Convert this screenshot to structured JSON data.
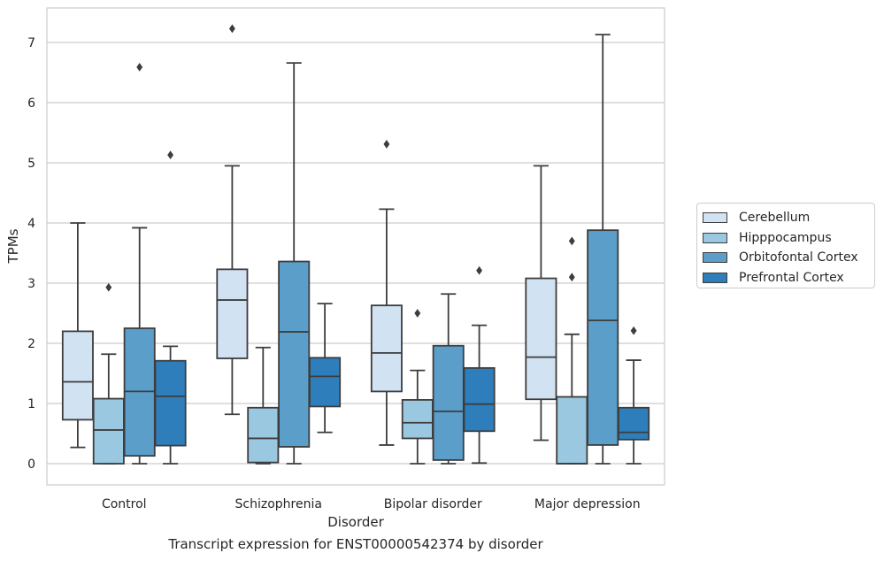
{
  "chart_data": {
    "type": "boxplot",
    "title": "Transcript expression for ENST00000542374 by disorder",
    "xlabel": "Disorder",
    "ylabel": "TPMs",
    "ylim": [
      -0.35,
      7.6
    ],
    "yticks": [
      0,
      1,
      2,
      3,
      4,
      5,
      6,
      7
    ],
    "grid": true,
    "legend_position": "right",
    "categories": [
      "Control",
      "Schizophrenia",
      "Bipolar disorder",
      "Major depression"
    ],
    "series": [
      {
        "name": "Cerebellum",
        "color": "#d1e2f2",
        "boxes": [
          {
            "whislo": 0.27,
            "q1": 0.73,
            "med": 1.36,
            "q3": 2.2,
            "whishi": 4.0,
            "fliers": []
          },
          {
            "whislo": 0.82,
            "q1": 1.75,
            "med": 2.72,
            "q3": 3.23,
            "whishi": 4.95,
            "fliers": [
              7.23
            ]
          },
          {
            "whislo": 0.31,
            "q1": 1.2,
            "med": 1.84,
            "q3": 2.63,
            "whishi": 4.23,
            "fliers": [
              5.31
            ]
          },
          {
            "whislo": 0.39,
            "q1": 1.07,
            "med": 1.77,
            "q3": 3.08,
            "whishi": 4.95,
            "fliers": []
          }
        ]
      },
      {
        "name": "Hipppocampus",
        "color": "#9ac8e0",
        "boxes": [
          {
            "whislo": 0.0,
            "q1": 0.0,
            "med": 0.56,
            "q3": 1.08,
            "whishi": 1.82,
            "fliers": [
              2.93
            ]
          },
          {
            "whislo": 0.0,
            "q1": 0.02,
            "med": 0.42,
            "q3": 0.93,
            "whishi": 1.93,
            "fliers": []
          },
          {
            "whislo": 0.0,
            "q1": 0.42,
            "med": 0.68,
            "q3": 1.06,
            "whishi": 1.55,
            "fliers": [
              2.5
            ]
          },
          {
            "whislo": 0.0,
            "q1": 0.0,
            "med": 0.0,
            "q3": 1.11,
            "whishi": 2.15,
            "fliers": [
              3.1,
              3.7
            ]
          }
        ]
      },
      {
        "name": "Orbitofontal Cortex",
        "color": "#5a9ec9",
        "boxes": [
          {
            "whislo": 0.0,
            "q1": 0.13,
            "med": 1.2,
            "q3": 2.25,
            "whishi": 3.92,
            "fliers": [
              6.59
            ]
          },
          {
            "whislo": 0.0,
            "q1": 0.28,
            "med": 2.19,
            "q3": 3.36,
            "whishi": 6.66,
            "fliers": []
          },
          {
            "whislo": 0.0,
            "q1": 0.06,
            "med": 0.87,
            "q3": 1.96,
            "whishi": 2.82,
            "fliers": []
          },
          {
            "whislo": 0.0,
            "q1": 0.31,
            "med": 2.38,
            "q3": 3.88,
            "whishi": 7.13,
            "fliers": []
          }
        ]
      },
      {
        "name": "Prefrontal Cortex",
        "color": "#2e7ebc",
        "boxes": [
          {
            "whislo": 0.0,
            "q1": 0.3,
            "med": 1.12,
            "q3": 1.71,
            "whishi": 1.95,
            "fliers": [
              5.13
            ]
          },
          {
            "whislo": 0.52,
            "q1": 0.95,
            "med": 1.45,
            "q3": 1.76,
            "whishi": 2.66,
            "fliers": []
          },
          {
            "whislo": 0.01,
            "q1": 0.54,
            "med": 0.99,
            "q3": 1.59,
            "whishi": 2.3,
            "fliers": [
              3.21
            ]
          },
          {
            "whislo": 0.0,
            "q1": 0.4,
            "med": 0.52,
            "q3": 0.93,
            "whishi": 1.72,
            "fliers": [
              2.21
            ]
          }
        ]
      }
    ]
  }
}
